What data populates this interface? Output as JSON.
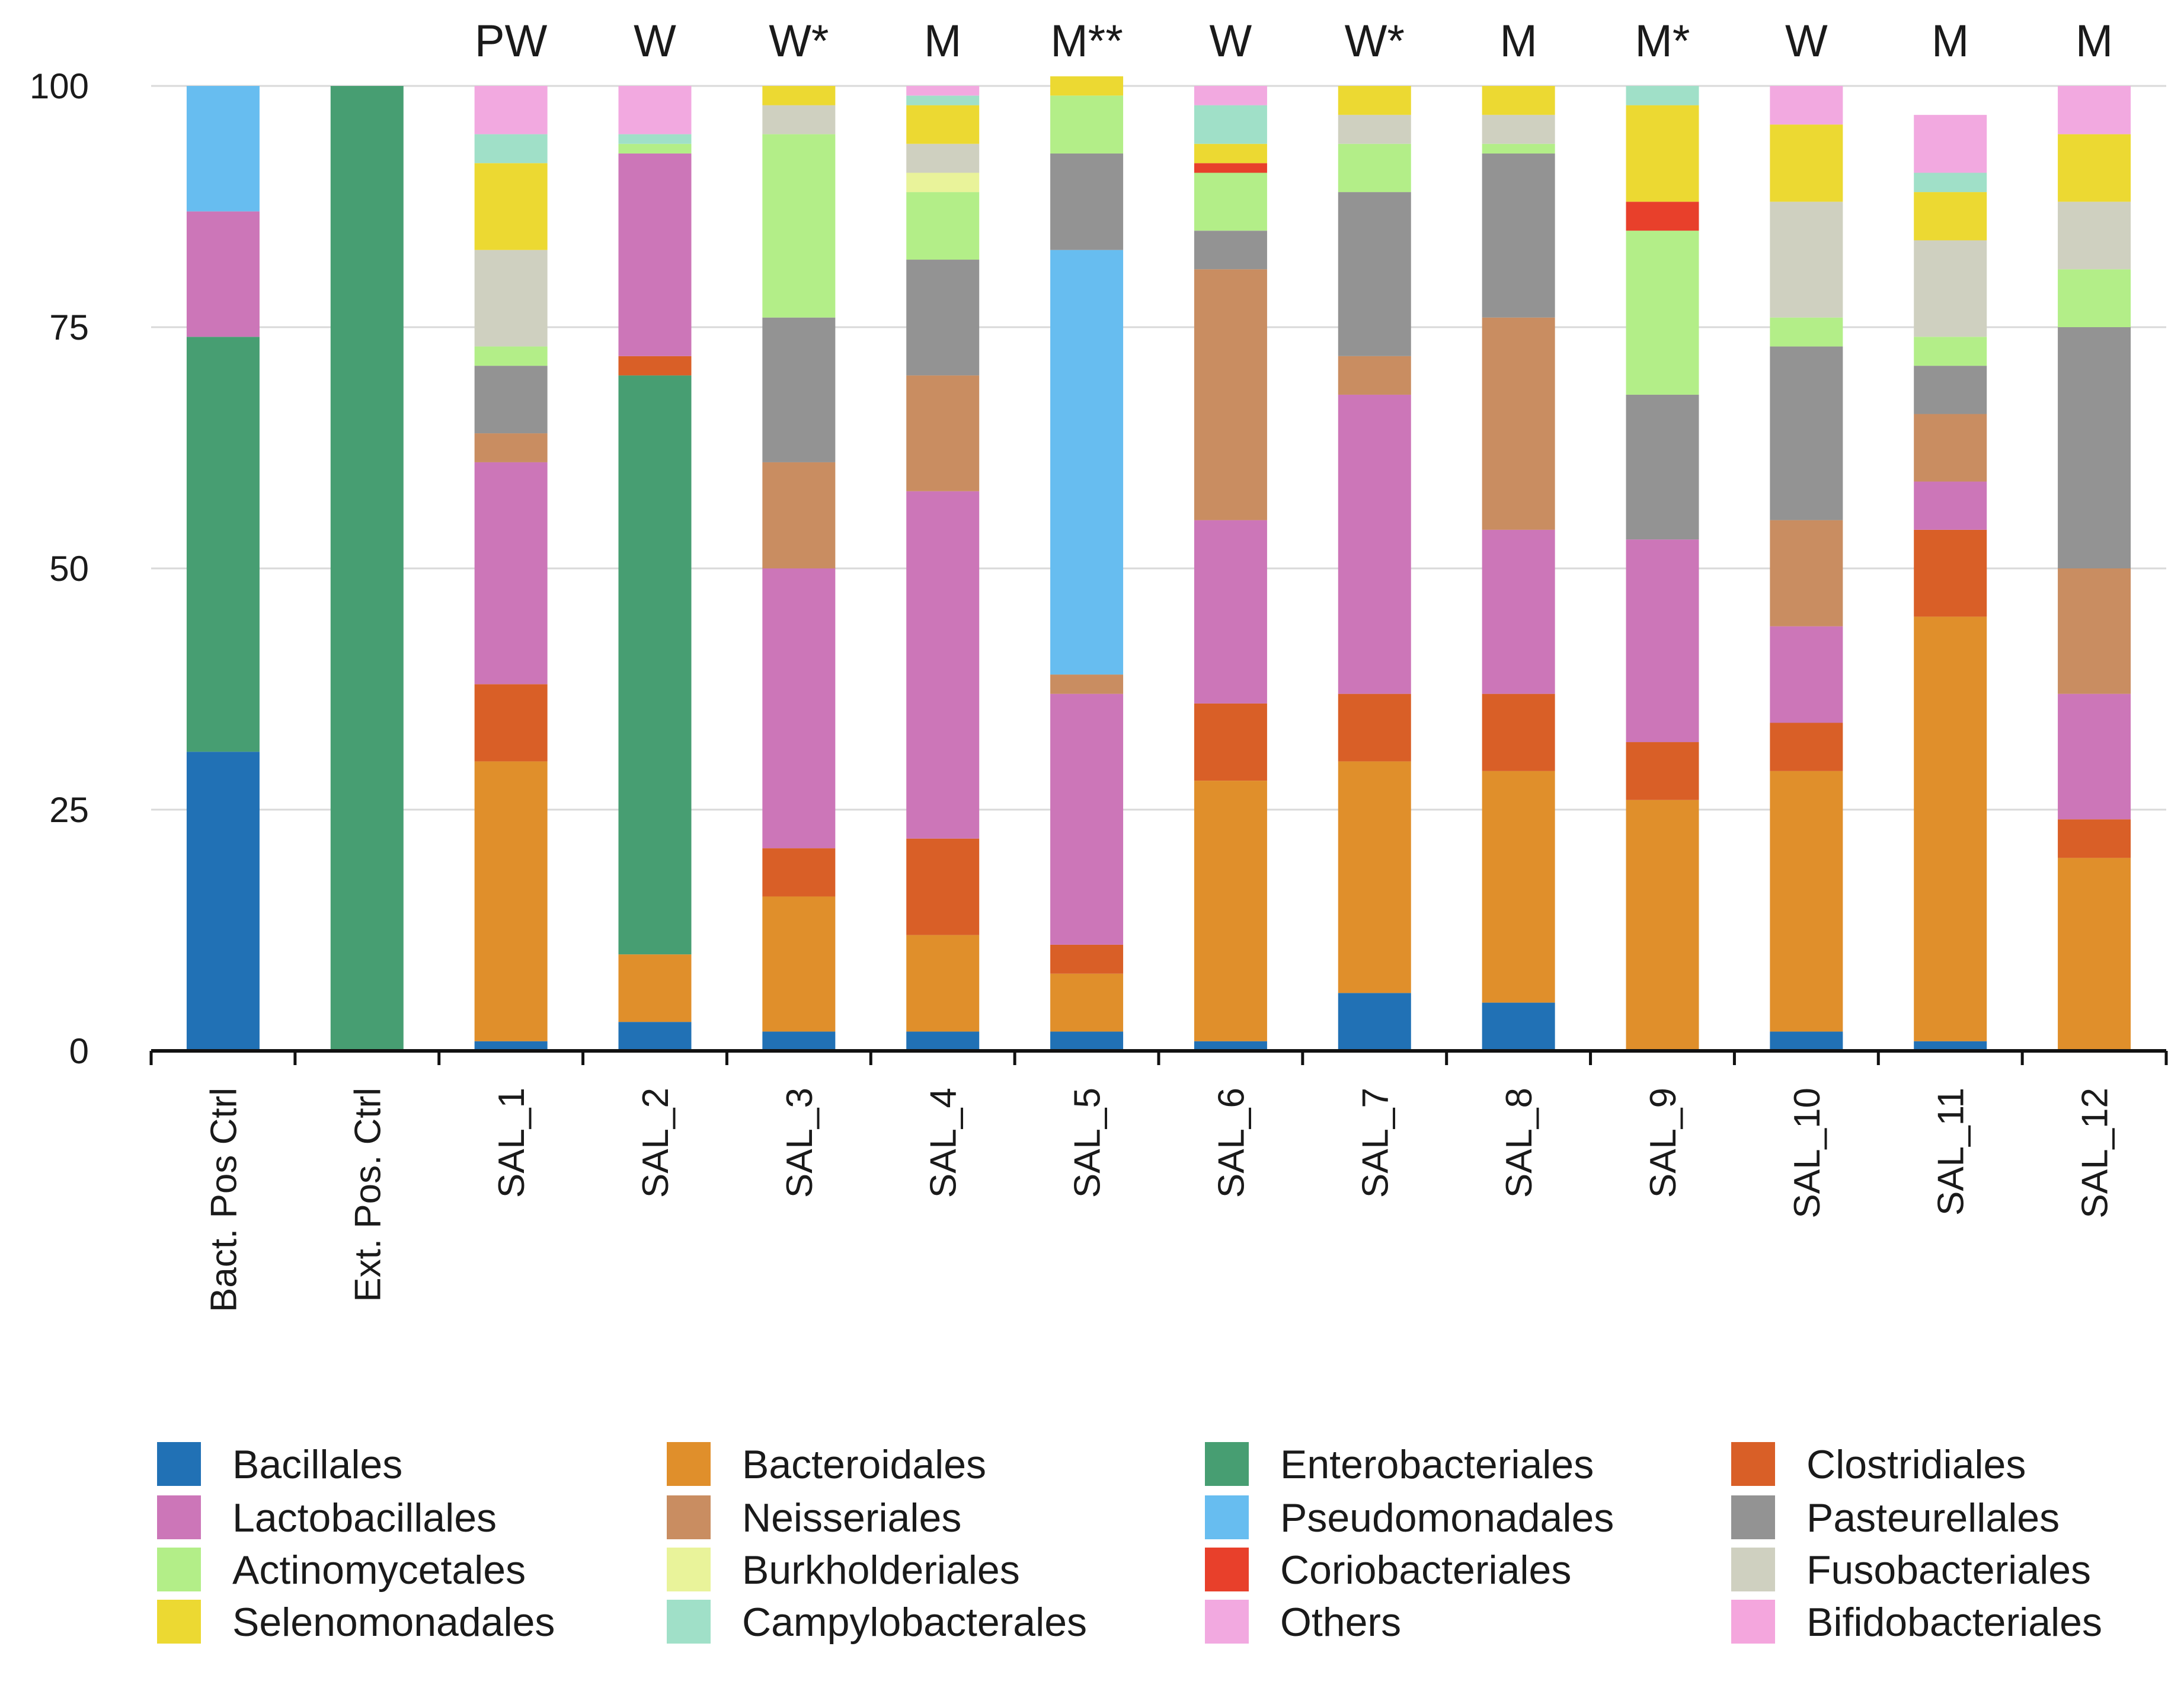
{
  "chart_data": {
    "type": "bar",
    "stacked": true,
    "title": "",
    "xlabel": "",
    "ylabel": "",
    "ylim": [
      0,
      100
    ],
    "yticks": [
      0,
      25,
      50,
      75,
      100
    ],
    "grid": true,
    "legend_position": "bottom",
    "categories": [
      "Bact. Pos Ctrl",
      "Ext. Pos. Ctrl",
      "SAL_1",
      "SAL_2",
      "SAL_3",
      "SAL_4",
      "SAL_5",
      "SAL_6",
      "SAL_7",
      "SAL_8",
      "SAL_9",
      "SAL_10",
      "SAL_11",
      "SAL_12"
    ],
    "group_labels": [
      "",
      "",
      "PW",
      "W",
      "W*",
      "M",
      "M**",
      "W",
      "W*",
      "M",
      "M*",
      "W",
      "M",
      "M"
    ],
    "legend_order": [
      "Bacillales",
      "Bacteroidales",
      "Enterobacteriales",
      "Clostridiales",
      "Lactobacillales",
      "Neisseriales",
      "Pseudomonadales",
      "Pasteurellales",
      "Actinomycetales",
      "Burkholderiales",
      "Coriobacteriales",
      "Fusobacteriales",
      "Selenomonadales",
      "Campylobacterales",
      "Others",
      "Bifidobacteriales"
    ],
    "series": [
      {
        "name": "Bacillales",
        "color": "#2171b5",
        "values": [
          31,
          0,
          1,
          3,
          2,
          2,
          2,
          1,
          6,
          5,
          0,
          2,
          1,
          0
        ]
      },
      {
        "name": "Bacteroidales",
        "color": "#e08f2b",
        "values": [
          0,
          0,
          29,
          7,
          14,
          10,
          6,
          27,
          24,
          24,
          26,
          27,
          44,
          20
        ]
      },
      {
        "name": "Enterobacteriales",
        "color": "#479e72",
        "values": [
          43,
          100,
          0,
          60,
          0,
          0,
          0,
          0,
          0,
          0,
          0,
          0,
          0,
          0
        ]
      },
      {
        "name": "Clostridiales",
        "color": "#d95f27",
        "values": [
          0,
          0,
          8,
          2,
          5,
          10,
          3,
          8,
          7,
          8,
          6,
          5,
          9,
          4
        ]
      },
      {
        "name": "Lactobacillales",
        "color": "#cc76b8",
        "values": [
          13,
          0,
          23,
          21,
          29,
          36,
          26,
          19,
          31,
          17,
          21,
          10,
          5,
          13
        ]
      },
      {
        "name": "Neisseriales",
        "color": "#c98d61",
        "values": [
          0,
          0,
          3,
          0,
          11,
          12,
          2,
          26,
          4,
          22,
          0,
          11,
          7,
          13
        ]
      },
      {
        "name": "Pseudomonadales",
        "color": "#67bdf0",
        "values": [
          13,
          0,
          0,
          0,
          0,
          0,
          44,
          0,
          0,
          0,
          0,
          0,
          0,
          0
        ]
      },
      {
        "name": "Pasteurellales",
        "color": "#939393",
        "values": [
          0,
          0,
          7,
          0,
          15,
          12,
          10,
          4,
          17,
          17,
          15,
          18,
          5,
          25
        ]
      },
      {
        "name": "Actinomycetales",
        "color": "#b3ee88",
        "values": [
          0,
          0,
          2,
          1,
          19,
          7,
          6,
          6,
          5,
          1,
          17,
          3,
          3,
          6
        ]
      },
      {
        "name": "Burkholderiales",
        "color": "#e9f39a",
        "values": [
          0,
          0,
          0,
          0,
          0,
          2,
          0,
          0,
          0,
          0,
          0,
          0,
          0,
          0
        ]
      },
      {
        "name": "Coriobacteriales",
        "color": "#e8402b",
        "values": [
          0,
          0,
          0,
          0,
          0,
          0,
          0,
          1,
          0,
          0,
          3,
          0,
          0,
          0
        ]
      },
      {
        "name": "Fusobacteriales",
        "color": "#cfd0c0",
        "values": [
          0,
          0,
          10,
          0,
          3,
          3,
          0,
          0,
          3,
          3,
          0,
          12,
          10,
          7
        ]
      },
      {
        "name": "Selenomonadales",
        "color": "#ecd932",
        "values": [
          0,
          0,
          9,
          0,
          2,
          4,
          2,
          2,
          3,
          3,
          10,
          8,
          5,
          7
        ]
      },
      {
        "name": "Campylobacterales",
        "color": "#a0e0c8",
        "values": [
          0,
          0,
          3,
          1,
          0,
          1,
          0,
          4,
          0,
          0,
          2,
          0,
          2,
          0
        ]
      },
      {
        "name": "Others",
        "color": "#f2a9e0",
        "values": [
          0,
          0,
          5,
          5,
          0,
          1,
          0,
          2,
          0,
          0,
          0,
          4,
          6,
          5
        ]
      },
      {
        "name": "Bifidobacteriales",
        "color": "#f4a6dd",
        "values": [
          0,
          0,
          0,
          0,
          0,
          0,
          0,
          0,
          0,
          0,
          0,
          0,
          0,
          0
        ]
      }
    ]
  }
}
